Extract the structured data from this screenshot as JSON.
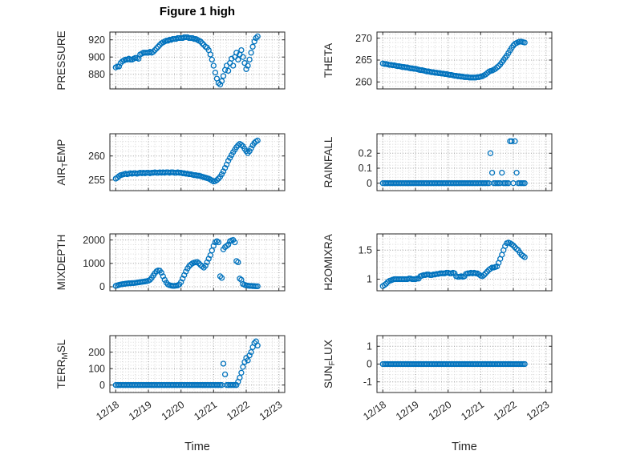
{
  "figure": {
    "title": "Figure 1 high",
    "background": "#ffffff",
    "marker_color": "#0072BD",
    "axis_color": "#262626",
    "grid_color": "#9a9a9a",
    "minor_grid_color": "#d9d9d9"
  },
  "chart_data": {
    "type": "scatter",
    "title": "Figure 1 high",
    "marker": "hollow-circle",
    "grid": "major+minor dotted",
    "legend": "none",
    "x_axis": {
      "label": "Time",
      "tick_labels": [
        "12/18",
        "12/19",
        "12/20",
        "12/21",
        "12/22",
        "12/23"
      ],
      "tick_values": [
        0,
        1,
        2,
        3,
        4,
        5
      ],
      "xlim": [
        -0.18,
        5.18
      ]
    },
    "sampling": {
      "x0": 0,
      "dx": 0.05
    },
    "subplots": [
      {
        "id": "pressure",
        "row": 0,
        "col": 0,
        "ylabel": {
          "pre": "PRESSURE",
          "sub": "",
          "post": ""
        },
        "ylim": [
          863,
          929
        ],
        "yticks": [
          880,
          900,
          920
        ],
        "y": [
          888,
          889,
          889,
          893,
          895,
          896,
          897,
          897,
          898,
          897,
          897,
          898,
          899,
          899,
          898,
          903,
          904,
          905,
          905,
          905,
          905,
          906,
          905,
          906,
          908,
          910,
          912,
          914,
          916,
          917,
          918,
          919,
          919,
          920,
          920,
          921,
          921,
          921,
          922,
          922,
          922,
          922,
          923,
          923,
          923,
          922,
          922,
          922,
          921,
          921,
          920,
          919,
          918,
          916,
          914,
          912,
          911,
          908,
          903,
          897,
          890,
          882,
          875,
          870,
          868,
          872,
          878,
          885,
          890,
          884,
          893,
          898,
          890,
          900,
          905,
          897,
          903,
          908,
          900,
          893,
          886,
          890,
          897,
          905,
          912,
          918,
          922,
          924
        ]
      },
      {
        "id": "theta",
        "row": 0,
        "col": 1,
        "ylabel": {
          "pre": "THETA",
          "sub": "",
          "post": ""
        },
        "ylim": [
          258.4,
          271.4
        ],
        "yticks": [
          260,
          265,
          270
        ],
        "y": [
          264.2,
          264.1,
          264.1,
          264.0,
          263.9,
          263.9,
          263.8,
          263.8,
          263.7,
          263.6,
          263.6,
          263.5,
          263.4,
          263.4,
          263.3,
          263.3,
          263.2,
          263.1,
          263.1,
          263.0,
          263.0,
          262.9,
          262.8,
          262.7,
          262.7,
          262.6,
          262.5,
          262.4,
          262.4,
          262.3,
          262.2,
          262.2,
          262.1,
          262.1,
          262.0,
          262.0,
          261.9,
          261.9,
          261.8,
          261.8,
          261.7,
          261.6,
          261.6,
          261.5,
          261.4,
          261.4,
          261.3,
          261.3,
          261.2,
          261.2,
          261.1,
          261.1,
          261.1,
          261.0,
          261.0,
          261.0,
          261.0,
          261.0,
          261.1,
          261.1,
          261.2,
          261.3,
          261.5,
          261.7,
          262.0,
          262.3,
          262.5,
          262.6,
          262.8,
          263.0,
          263.3,
          263.6,
          264.0,
          264.5,
          265.0,
          265.5,
          266.0,
          266.6,
          267.2,
          267.8,
          268.3,
          268.7,
          268.9,
          269.1,
          269.2,
          269.2,
          269.1,
          269.0
        ]
      },
      {
        "id": "air-temp",
        "row": 1,
        "col": 0,
        "ylabel": {
          "pre": "AIR",
          "sub": "T",
          "post": "EMP"
        },
        "ylim": [
          252.8,
          264.6
        ],
        "yticks": [
          255,
          260
        ],
        "y": [
          255.3,
          255.5,
          255.8,
          256.0,
          256.1,
          256.2,
          256.3,
          256.2,
          256.3,
          256.4,
          256.3,
          256.4,
          256.4,
          256.3,
          256.4,
          256.5,
          256.4,
          256.5,
          256.4,
          256.5,
          256.5,
          256.4,
          256.5,
          256.5,
          256.6,
          256.5,
          256.5,
          256.6,
          256.5,
          256.6,
          256.5,
          256.6,
          256.6,
          256.5,
          256.6,
          256.6,
          256.5,
          256.5,
          256.6,
          256.5,
          256.5,
          256.4,
          256.4,
          256.3,
          256.3,
          256.2,
          256.2,
          256.1,
          256.0,
          256.0,
          255.9,
          255.9,
          255.8,
          255.7,
          255.6,
          255.5,
          255.4,
          255.3,
          255.1,
          254.9,
          254.7,
          254.8,
          255.0,
          255.3,
          255.7,
          256.2,
          256.8,
          257.5,
          258.2,
          259.0,
          259.6,
          260.2,
          260.8,
          261.3,
          261.8,
          262.2,
          262.5,
          262.3,
          262.0,
          261.5,
          261.0,
          260.6,
          261.0,
          261.6,
          262.2,
          262.7,
          263.0,
          263.2
        ]
      },
      {
        "id": "rainfall",
        "row": 1,
        "col": 1,
        "ylabel": {
          "pre": "RAINFALL",
          "sub": "",
          "post": ""
        },
        "ylim": [
          -0.05,
          0.33
        ],
        "yticks": [
          0,
          0.1,
          0.2
        ],
        "y": [
          0,
          0,
          0,
          0,
          0,
          0,
          0,
          0,
          0,
          0,
          0,
          0,
          0,
          0,
          0,
          0,
          0,
          0,
          0,
          0,
          0,
          0,
          0,
          0,
          0,
          0,
          0,
          0,
          0,
          0,
          0,
          0,
          0,
          0,
          0,
          0,
          0,
          0,
          0,
          0,
          0,
          0,
          0,
          0,
          0,
          0,
          0,
          0,
          0,
          0,
          0,
          0,
          0,
          0,
          0,
          0,
          0,
          0,
          0,
          0,
          0,
          0,
          0,
          0,
          0,
          0,
          0.2,
          0.07,
          0,
          0,
          0,
          0,
          0,
          0.07,
          0,
          0,
          0,
          0,
          0.28,
          0.28,
          0,
          0.28,
          0.07,
          0,
          0,
          0,
          0,
          0
        ]
      },
      {
        "id": "mixdepth",
        "row": 2,
        "col": 0,
        "ylabel": {
          "pre": "MIXDEPTH",
          "sub": "",
          "post": ""
        },
        "ylim": [
          -170,
          2260
        ],
        "yticks": [
          0,
          1000,
          2000
        ],
        "y": [
          40,
          60,
          80,
          100,
          110,
          120,
          130,
          140,
          150,
          150,
          160,
          160,
          170,
          180,
          190,
          200,
          210,
          220,
          230,
          240,
          260,
          300,
          380,
          480,
          580,
          660,
          700,
          690,
          600,
          450,
          300,
          180,
          100,
          70,
          50,
          40,
          40,
          50,
          60,
          100,
          200,
          350,
          500,
          650,
          780,
          880,
          950,
          1000,
          1030,
          1050,
          1060,
          1000,
          930,
          870,
          820,
          900,
          1050,
          1200,
          1350,
          1550,
          1750,
          1900,
          1950,
          1900,
          450,
          380,
          1600,
          1700,
          1750,
          1800,
          1950,
          1980,
          2000,
          1900,
          1100,
          1050,
          350,
          300,
          120,
          80,
          60,
          50,
          40,
          40,
          30,
          30,
          20,
          20
        ]
      },
      {
        "id": "h2omixra",
        "row": 2,
        "col": 1,
        "ylabel": {
          "pre": "H2OMIXRA",
          "sub": "",
          "post": ""
        },
        "ylim": [
          0.8,
          1.78
        ],
        "yticks": [
          1,
          1.5
        ],
        "y": [
          0.88,
          0.9,
          0.92,
          0.95,
          0.97,
          0.98,
          0.99,
          1.0,
          1.0,
          1.0,
          1.0,
          1.0,
          1.0,
          1.0,
          1.0,
          1.0,
          1.01,
          1.01,
          1.0,
          1.0,
          1.0,
          1.01,
          1.01,
          1.05,
          1.06,
          1.07,
          1.07,
          1.08,
          1.08,
          1.07,
          1.07,
          1.08,
          1.08,
          1.09,
          1.09,
          1.1,
          1.1,
          1.1,
          1.1,
          1.11,
          1.11,
          1.1,
          1.1,
          1.11,
          1.1,
          1.05,
          1.04,
          1.04,
          1.05,
          1.04,
          1.05,
          1.09,
          1.1,
          1.1,
          1.11,
          1.1,
          1.11,
          1.1,
          1.1,
          1.08,
          1.06,
          1.05,
          1.07,
          1.1,
          1.13,
          1.16,
          1.18,
          1.2,
          1.2,
          1.21,
          1.22,
          1.28,
          1.35,
          1.42,
          1.5,
          1.57,
          1.62,
          1.63,
          1.62,
          1.6,
          1.58,
          1.55,
          1.52,
          1.5,
          1.46,
          1.42,
          1.4,
          1.38
        ]
      },
      {
        "id": "terr-msl",
        "row": 3,
        "col": 0,
        "ylabel": {
          "pre": "TERR",
          "sub": "M",
          "post": "SL"
        },
        "ylim": [
          -45,
          300
        ],
        "yticks": [
          0,
          100,
          200
        ],
        "y": [
          0,
          0,
          0,
          0,
          0,
          0,
          0,
          0,
          0,
          0,
          0,
          0,
          0,
          0,
          0,
          0,
          0,
          0,
          0,
          0,
          0,
          0,
          0,
          0,
          0,
          0,
          0,
          0,
          0,
          0,
          0,
          0,
          0,
          0,
          0,
          0,
          0,
          0,
          0,
          0,
          0,
          0,
          0,
          0,
          0,
          0,
          0,
          0,
          0,
          0,
          0,
          0,
          0,
          0,
          0,
          0,
          0,
          0,
          0,
          0,
          0,
          0,
          0,
          0,
          0,
          0,
          130,
          65,
          0,
          0,
          0,
          0,
          0,
          0,
          0,
          20,
          45,
          75,
          110,
          140,
          165,
          150,
          180,
          200,
          230,
          255,
          265,
          240
        ]
      },
      {
        "id": "sun-flux",
        "row": 3,
        "col": 1,
        "ylabel": {
          "pre": "SUN",
          "sub": "F",
          "post": "LUX"
        },
        "ylim": [
          -1.6,
          1.6
        ],
        "yticks": [
          -1,
          0,
          1
        ],
        "y": [
          0,
          0,
          0,
          0,
          0,
          0,
          0,
          0,
          0,
          0,
          0,
          0,
          0,
          0,
          0,
          0,
          0,
          0,
          0,
          0,
          0,
          0,
          0,
          0,
          0,
          0,
          0,
          0,
          0,
          0,
          0,
          0,
          0,
          0,
          0,
          0,
          0,
          0,
          0,
          0,
          0,
          0,
          0,
          0,
          0,
          0,
          0,
          0,
          0,
          0,
          0,
          0,
          0,
          0,
          0,
          0,
          0,
          0,
          0,
          0,
          0,
          0,
          0,
          0,
          0,
          0,
          0,
          0,
          0,
          0,
          0,
          0,
          0,
          0,
          0,
          0,
          0,
          0,
          0,
          0,
          0,
          0,
          0,
          0,
          0,
          0,
          0,
          0
        ]
      }
    ]
  }
}
